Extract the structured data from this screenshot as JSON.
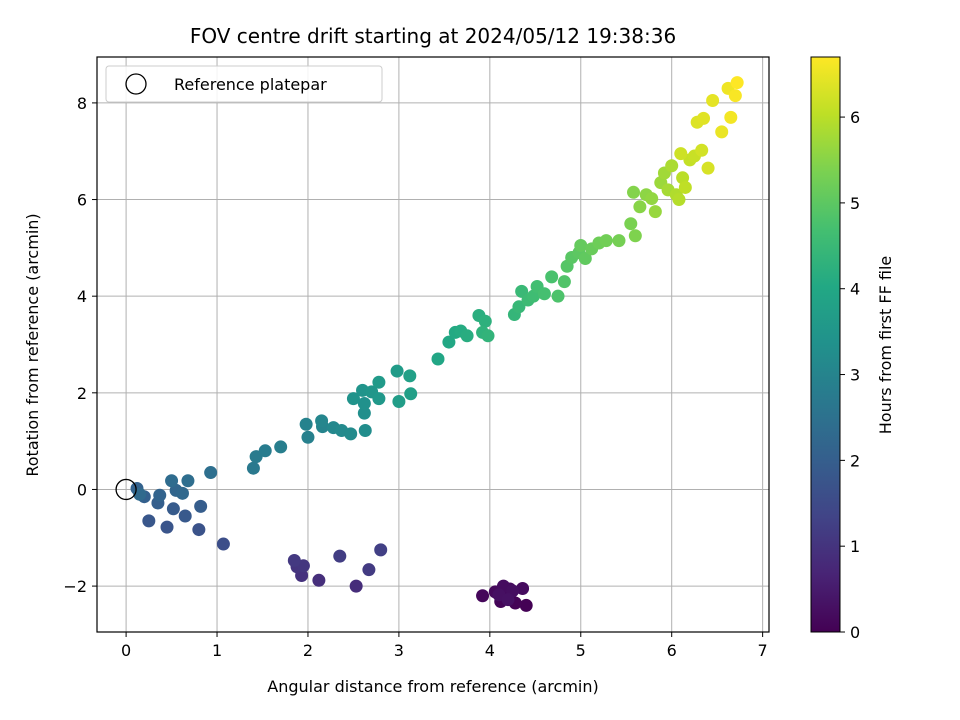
{
  "chart_data": {
    "type": "scatter",
    "title": "FOV centre drift starting at 2024/05/12 19:38:36",
    "xlabel": "Angular distance from reference (arcmin)",
    "ylabel": "Rotation from reference (arcmin)",
    "xlim": [
      -0.32,
      7.07
    ],
    "ylim": [
      -2.95,
      8.95
    ],
    "x_ticks": [
      0,
      1,
      2,
      3,
      4,
      5,
      6,
      7
    ],
    "y_ticks": [
      -2,
      0,
      2,
      4,
      6,
      8
    ],
    "grid": true,
    "legend": {
      "placement": "top-left",
      "entries": [
        "Reference platepar"
      ]
    },
    "reference_point": {
      "x": 0,
      "y": 0,
      "label": "Reference platepar"
    },
    "colorbar": {
      "label": "Hours from first FF file",
      "colormap": "viridis",
      "range": [
        0,
        6.7
      ],
      "ticks": [
        0,
        1,
        2,
        3,
        4,
        5,
        6
      ]
    },
    "points": [
      [
        4.4,
        -2.4,
        0.02
      ],
      [
        4.28,
        -2.35,
        0.05
      ],
      [
        4.12,
        -2.32,
        0.08
      ],
      [
        4.18,
        -2.22,
        0.1
      ],
      [
        3.92,
        -2.2,
        0.12
      ],
      [
        4.06,
        -2.12,
        0.15
      ],
      [
        4.22,
        -2.06,
        0.18
      ],
      [
        4.36,
        -2.05,
        0.2
      ],
      [
        4.15,
        -2.0,
        0.22
      ],
      [
        4.25,
        -2.1,
        0.25
      ],
      [
        4.1,
        -2.18,
        0.28
      ],
      [
        4.2,
        -2.28,
        0.3
      ],
      [
        2.53,
        -2.0,
        0.85
      ],
      [
        2.12,
        -1.88,
        0.9
      ],
      [
        1.93,
        -1.78,
        0.95
      ],
      [
        1.88,
        -1.6,
        1.0
      ],
      [
        1.95,
        -1.58,
        1.05
      ],
      [
        1.85,
        -1.47,
        1.1
      ],
      [
        2.67,
        -1.66,
        1.15
      ],
      [
        2.35,
        -1.38,
        1.2
      ],
      [
        2.8,
        -1.25,
        1.25
      ],
      [
        1.07,
        -1.13,
        1.6
      ],
      [
        0.8,
        -0.83,
        1.7
      ],
      [
        0.45,
        -0.78,
        1.75
      ],
      [
        0.25,
        -0.65,
        1.8
      ],
      [
        0.65,
        -0.55,
        1.85
      ],
      [
        0.52,
        -0.4,
        1.9
      ],
      [
        0.82,
        -0.35,
        1.95
      ],
      [
        0.35,
        -0.28,
        2.0
      ],
      [
        0.2,
        -0.15,
        2.05
      ],
      [
        0.12,
        0.02,
        2.1
      ],
      [
        0.37,
        -0.12,
        2.15
      ],
      [
        0.55,
        -0.02,
        2.2
      ],
      [
        0.62,
        -0.08,
        2.25
      ],
      [
        0.15,
        -0.1,
        2.3
      ],
      [
        0.5,
        0.18,
        2.35
      ],
      [
        0.68,
        0.18,
        2.4
      ],
      [
        0.93,
        0.35,
        2.45
      ],
      [
        1.4,
        0.44,
        2.7
      ],
      [
        1.43,
        0.68,
        2.75
      ],
      [
        1.53,
        0.8,
        2.8
      ],
      [
        1.7,
        0.88,
        2.85
      ],
      [
        2.0,
        1.08,
        2.9
      ],
      [
        1.98,
        1.35,
        2.95
      ],
      [
        2.16,
        1.3,
        3.0
      ],
      [
        2.15,
        1.42,
        3.05
      ],
      [
        2.28,
        1.28,
        3.1
      ],
      [
        2.37,
        1.22,
        3.15
      ],
      [
        2.47,
        1.15,
        3.2
      ],
      [
        2.63,
        1.22,
        3.25
      ],
      [
        2.62,
        1.58,
        3.3
      ],
      [
        2.62,
        1.78,
        3.35
      ],
      [
        2.5,
        1.88,
        3.4
      ],
      [
        2.6,
        2.05,
        3.45
      ],
      [
        2.7,
        2.02,
        3.5
      ],
      [
        2.78,
        1.88,
        3.55
      ],
      [
        2.78,
        2.22,
        3.6
      ],
      [
        2.98,
        2.45,
        3.65
      ],
      [
        3.0,
        1.82,
        3.7
      ],
      [
        3.13,
        1.98,
        3.75
      ],
      [
        3.12,
        2.35,
        3.8
      ],
      [
        3.43,
        2.7,
        3.95
      ],
      [
        3.55,
        3.05,
        4.0
      ],
      [
        3.62,
        3.25,
        4.05
      ],
      [
        3.68,
        3.28,
        4.1
      ],
      [
        3.75,
        3.18,
        4.15
      ],
      [
        3.88,
        3.6,
        4.2
      ],
      [
        3.95,
        3.48,
        4.25
      ],
      [
        3.92,
        3.25,
        4.3
      ],
      [
        3.98,
        3.18,
        4.35
      ],
      [
        4.27,
        3.62,
        4.4
      ],
      [
        4.32,
        3.78,
        4.45
      ],
      [
        4.35,
        4.1,
        4.5
      ],
      [
        4.42,
        3.92,
        4.55
      ],
      [
        4.48,
        4.0,
        4.6
      ],
      [
        4.52,
        4.2,
        4.65
      ],
      [
        4.6,
        4.05,
        4.7
      ],
      [
        4.68,
        4.4,
        4.75
      ],
      [
        4.75,
        4.0,
        4.8
      ],
      [
        4.82,
        4.3,
        4.85
      ],
      [
        4.85,
        4.62,
        4.9
      ],
      [
        4.9,
        4.8,
        4.95
      ],
      [
        4.98,
        4.9,
        5.0
      ],
      [
        5.05,
        4.78,
        5.05
      ],
      [
        5.0,
        5.05,
        5.1
      ],
      [
        5.12,
        4.98,
        5.15
      ],
      [
        5.2,
        5.1,
        5.2
      ],
      [
        5.28,
        5.15,
        5.25
      ],
      [
        5.42,
        5.15,
        5.3
      ],
      [
        5.55,
        5.5,
        5.35
      ],
      [
        5.6,
        5.25,
        5.4
      ],
      [
        5.58,
        6.15,
        5.45
      ],
      [
        5.65,
        5.85,
        5.5
      ],
      [
        5.72,
        6.1,
        5.55
      ],
      [
        5.78,
        6.02,
        5.6
      ],
      [
        5.82,
        5.75,
        5.65
      ],
      [
        5.88,
        6.35,
        5.7
      ],
      [
        5.92,
        6.55,
        5.75
      ],
      [
        5.96,
        6.2,
        5.8
      ],
      [
        6.0,
        6.7,
        5.85
      ],
      [
        6.05,
        6.1,
        5.9
      ],
      [
        6.08,
        6.0,
        5.95
      ],
      [
        6.12,
        6.45,
        6.0
      ],
      [
        6.15,
        6.25,
        6.05
      ],
      [
        6.2,
        6.82,
        6.1
      ],
      [
        6.25,
        6.9,
        6.15
      ],
      [
        6.1,
        6.95,
        6.2
      ],
      [
        6.33,
        7.02,
        6.25
      ],
      [
        6.4,
        6.65,
        6.3
      ],
      [
        6.28,
        7.6,
        6.35
      ],
      [
        6.35,
        7.68,
        6.4
      ],
      [
        6.45,
        8.05,
        6.45
      ],
      [
        6.55,
        7.4,
        6.5
      ],
      [
        6.62,
        8.3,
        6.55
      ],
      [
        6.65,
        7.7,
        6.6
      ],
      [
        6.7,
        8.15,
        6.65
      ],
      [
        6.72,
        8.42,
        6.7
      ]
    ]
  }
}
